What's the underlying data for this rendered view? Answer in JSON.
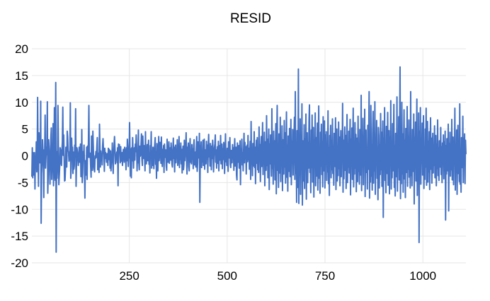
{
  "chart_data": {
    "type": "line",
    "title": "RESID",
    "xlabel": "",
    "ylabel": "",
    "xlim": [
      1,
      1110
    ],
    "ylim": [
      -20,
      20
    ],
    "x_ticks": [
      250,
      500,
      750,
      1000
    ],
    "y_ticks": [
      20,
      15,
      10,
      5,
      0,
      -5,
      -10,
      -15,
      -20
    ],
    "x_grid": true,
    "y_grid": true,
    "line_color": "#4472c4",
    "series": [
      {
        "values": [
          -3.9,
          1.5,
          -4.1,
          0.6,
          -2.5,
          -3.6,
          0.6,
          -6.2,
          -0.1,
          -1.7,
          2.6,
          -3.0,
          -1.6,
          10.9,
          -0.1,
          -5.7,
          4.3,
          0.8,
          -1.3,
          -1.0,
          10.2,
          -12.6,
          -3.3,
          -1.7,
          3.0,
          1.1,
          -0.3,
          -7.8,
          1.1,
          0.5,
          7.6,
          -2.3,
          -0.1,
          0.9,
          1.8,
          10.1,
          -7.0,
          -3.5,
          3.0,
          1.4,
          -1.3,
          -5.3,
          -0.7,
          3.5,
          5.2,
          -4.4,
          -1.7,
          -2.3,
          6.0,
          -5.6,
          -0.2,
          9.0,
          -3.8,
          -4.6,
          13.7,
          -18.0,
          0.8,
          -4.2,
          -1.5,
          9.4,
          2.0,
          -5.4,
          -3.7,
          -2.0,
          1.5,
          1.0,
          -1.3,
          -1.8,
          1.0,
          2.6,
          9.1,
          0.1,
          3.9,
          -0.3,
          -4.7,
          -4.6,
          -2.6,
          1.6,
          -0.5,
          -2.1,
          4.6,
          3.6,
          1.0,
          0.7,
          -1.0,
          -0.6,
          -0.7,
          9.9,
          -4.2,
          -2.3,
          3.3,
          0.6,
          1.6,
          -3.3,
          0.7,
          -2.5,
          -1.9,
          2.0,
          0.1,
          8.8,
          -5.7,
          -1.4,
          1.5,
          0.8,
          -0.3,
          -1.8,
          -0.4,
          1.6,
          -1.2,
          0.6,
          2.2,
          -3.9,
          -3.2,
          4.9,
          -5.0,
          -3.2,
          0.8,
          -0.3,
          2.0,
          -1.5,
          -7.9,
          -0.9,
          -2.1,
          -3.6,
          1.6,
          -4.4,
          1.8,
          -0.3,
          2.6,
          9.4,
          -0.3,
          -0.3,
          0.5,
          -2.0,
          -4.0,
          3.7,
          0.7,
          -2.7,
          4.6,
          1.7,
          -1.9,
          -2.6,
          -3.0,
          0.0,
          -0.5,
          0.8,
          -0.3,
          1.6,
          3.4,
          -2.6,
          -0.4,
          0.5,
          -3.1,
          5.9,
          1.8,
          -2.1,
          0.9,
          -0.2,
          0.3,
          -1.7,
          1.8,
          3.2,
          1.2,
          0.3,
          -2.9,
          1.4,
          -0.5,
          0.6,
          0.2,
          -1.2,
          0.3,
          0.4,
          -1.8,
          1.4,
          -0.7,
          1.2,
          0.8,
          -2.3,
          0.9,
          -2.8,
          -0.8,
          -1.0,
          2.4,
          -1.3,
          -3.3,
          0.3,
          2.0,
          3.6,
          1.4,
          -1.5,
          -0.1,
          -0.3,
          0.7,
          -1.3,
          1.5,
          -5.6,
          2.2,
          0.6,
          2.1,
          0.4,
          -1.3,
          1.7,
          -1.0,
          -0.2,
          0.6,
          -1.8,
          0.2,
          1.2,
          0.4,
          -1.2,
          1.6,
          1.0,
          0.2,
          -2.6,
          1.5,
          -0.9,
          3.1,
          1.7,
          -2.0,
          0.3,
          -0.4,
          6.2,
          0.8,
          -3.8,
          1.3,
          -4.1,
          1.5,
          -0.9,
          3.4,
          0.3,
          -2.3,
          0.5,
          1.5,
          -0.8,
          2.2,
          0.8,
          3.9,
          1.9,
          -2.8,
          0.8,
          -1.3,
          4.8,
          -1.1,
          -2.6,
          1.8,
          -0.1,
          0.2,
          2.2,
          4.1,
          -0.6,
          -1.8,
          3.7,
          1.2,
          -0.5,
          1.9,
          0.2,
          -2.8,
          4.5,
          -1.2,
          -1.5,
          0.6,
          2.1,
          -0.9,
          1.0,
          2.9,
          -1.6,
          0.3,
          -3.2,
          1.9,
          0.4,
          4.5,
          -2.3,
          0.9,
          -1.8,
          1.6,
          0.6,
          -2.4,
          1.1,
          2.1,
          3.4,
          -1.6,
          0.2,
          -4.2,
          2.3,
          1.1,
          -2.8,
          0.2,
          3.6,
          -0.9,
          0.5,
          2.5,
          1.3,
          -1.4,
          3.5,
          0.3,
          -2.0,
          1.2,
          -0.8,
          1.9,
          -3.1,
          2.2,
          0.6,
          -0.3,
          1.1,
          -1.9,
          -2.7,
          3.1,
          0.5,
          -1.2,
          -0.1,
          2.6,
          -1.4,
          0.7,
          1.5,
          -0.8,
          2.4,
          1.0,
          -1.6,
          -2.1,
          0.8,
          3.3,
          -0.5,
          1.6,
          -3.0,
          0.9,
          2.0,
          -1.3,
          0.4,
          -0.2,
          3.0,
          -1.8,
          -1.1,
          0.6,
          3.6,
          -2.2,
          1.7,
          -0.7,
          2.4,
          -1.5,
          1.2,
          -3.2,
          0.3,
          1.8,
          -2.6,
          -1.6,
          2.9,
          -0.9,
          0.5,
          1.4,
          4.3,
          -1.0,
          -3.4,
          1.6,
          0.4,
          2.4,
          -2.0,
          -2.8,
          1.1,
          3.2,
          -1.2,
          0.8,
          -1.5,
          2.1,
          -0.6,
          1.3,
          -2.4,
          1.9,
          3.0,
          -1.7,
          -0.3,
          0.7,
          -2.1,
          1.5,
          3.6,
          -2.9,
          -1.4,
          2.6,
          1.2,
          -0.4,
          4.2,
          -8.7,
          -0.3,
          1.4,
          2.6,
          -2.2,
          0.6,
          -1.1,
          2.9,
          -1.8,
          0.2,
          3.1,
          -2.5,
          1.1,
          0.4,
          -1.5,
          2.7,
          -0.6,
          2.0,
          -3.1,
          1.6,
          4.0,
          -0.2,
          0.9,
          -1.9,
          2.3,
          0.3,
          -2.6,
          1.8,
          -0.5,
          2.9,
          1.0,
          -3.0,
          -0.8,
          1.5,
          2.2,
          3.9,
          -1.2,
          1.1,
          -2.3,
          0.3,
          1.7,
          -1.4,
          2.7,
          -2.8,
          0.6,
          1.9,
          -0.8,
          3.8,
          -1.5,
          0.4,
          2.2,
          -2.4,
          1.3,
          -0.7,
          2.5,
          1.8,
          -3.3,
          0.2,
          4.1,
          -1.1,
          0.9,
          -1.8,
          1.4,
          -0.3,
          -2.9,
          2.6,
          1.2,
          -0.4,
          3.4,
          -1.6,
          -2.2,
          1.0,
          0.5,
          -1.3,
          2.1,
          -0.6,
          1.5,
          -2.7,
          0.8,
          3.2,
          -1.9,
          0.1,
          1.6,
          -3.6,
          -4.5,
          2.4,
          0.7,
          -1.2,
          1.9,
          -2.3,
          0.4,
          2.8,
          -5.4,
          1.3,
          -0.8,
          3.1,
          -1.7,
          0.6,
          -2.8,
          1.1,
          4.2,
          -1.3,
          2.5,
          -0.5,
          1.7,
          -3.4,
          0.9,
          2.0,
          -1.1,
          3.8,
          -0.7,
          1.4,
          -2.5,
          0.3,
          2.7,
          -4.4,
          6.4,
          -1.6,
          1.2,
          -3.7,
          2.3,
          0.8,
          -1.9,
          4.5,
          -2.2,
          1.6,
          -5.2,
          0.5,
          2.9,
          -1.4,
          3.4,
          -2.6,
          1.0,
          -3.1,
          5.4,
          -0.6,
          2.1,
          -4.8,
          1.5,
          3.6,
          -2.0,
          0.7,
          6.2,
          -3.5,
          1.9,
          -1.2,
          4.4,
          -5.6,
          2.6,
          0.4,
          -2.7,
          7.5,
          -1.8,
          3.1,
          -4.1,
          1.3,
          5.0,
          -6.3,
          2.2,
          -1.5,
          3.9,
          0.6,
          -3.8,
          8.8,
          -2.4,
          1.7,
          -5.3,
          4.6,
          -0.9,
          2.8,
          -4.5,
          1.1,
          6.0,
          -7.1,
          3.3,
          9.4,
          -2.7,
          0.5,
          -5.9,
          4.1,
          1.6,
          -3.2,
          7.2,
          -4.8,
          2.4,
          -1.7,
          5.6,
          -6.5,
          3.0,
          0.9,
          -3.4,
          6.6,
          -2.1,
          4.3,
          -5.1,
          1.2,
          8.2,
          -4.0,
          2.0,
          -6.6,
          3.7,
          0.4,
          -2.9,
          5.1,
          -3.9,
          1.5,
          6.8,
          -5.4,
          2.7,
          -1.4,
          4.9,
          -3.6,
          0.8,
          3.5,
          7.2,
          -4.4,
          12.0,
          -3.3,
          2.2,
          -8.7,
          4.7,
          0.3,
          -5.9,
          16.2,
          -8.9,
          1.9,
          -3.6,
          6.9,
          -7.2,
          3.6,
          -1.2,
          9.7,
          -9.2,
          2.8,
          0.6,
          -4.7,
          5.8,
          -6.1,
          3.2,
          -2.5,
          7.8,
          -8.1,
          1.4,
          4.3,
          -5.0,
          2.5,
          -2.3,
          6.4,
          9.5,
          -3.1,
          1.1,
          -6.9,
          4.8,
          -2.2,
          7.6,
          -4.9,
          0.9,
          5.3,
          -7.7,
          2.9,
          -1.6,
          8.0,
          -5.6,
          3.4,
          -3.8,
          1.7,
          6.1,
          -6.4,
          2.0,
          9.3,
          -4.2,
          1.3,
          -7.0,
          4.4,
          -1.9,
          5.9,
          -3.5,
          2.6,
          -5.8,
          7.3,
          -2.8,
          0.7,
          6.5,
          -6.0,
          3.9,
          -1.3,
          4.5,
          -4.6,
          2.3,
          -3.0,
          8.4,
          -5.2,
          1.5,
          -7.4,
          3.8,
          0.2,
          5.7,
          -4.1,
          2.8,
          -2.6,
          6.9,
          -3.3,
          1.8,
          -5.5,
          4.2,
          0.6,
          -2.0,
          7.1,
          -6.3,
          2.5,
          5.0,
          -4.7,
          1.2,
          -3.7,
          6.3,
          -2.4,
          3.5,
          -5.6,
          1.0,
          4.7,
          -3.9,
          2.1,
          -1.1,
          9.8,
          -6.8,
          2.9,
          -4.3,
          1.6,
          5.4,
          -2.7,
          3.8,
          -6.1,
          0.8,
          7.7,
          -5.0,
          2.2,
          -2.1,
          4.6,
          -3.2,
          1.4,
          6.8,
          -7.3,
          3.1,
          -1.8,
          5.2,
          -4.4,
          2.4,
          8.9,
          -5.8,
          1.7,
          -3.4,
          6.2,
          -2.3,
          4.0,
          -6.7,
          1.9,
          3.3,
          -4.8,
          7.4,
          -2.9,
          1.3,
          -5.3,
          4.9,
          0.5,
          -3.6,
          11.3,
          -6.5,
          2.7,
          -2.0,
          7.0,
          -5.4,
          3.6,
          -1.5,
          8.7,
          -7.6,
          2.0,
          4.8,
          -3.1,
          1.1,
          -6.2,
          5.7,
          -2.5,
          3.4,
          12.0,
          -7.9,
          2.6,
          -4.9,
          9.4,
          -3.8,
          1.9,
          -6.4,
          4.3,
          8.3,
          -5.1,
          2.3,
          -2.8,
          10.1,
          -7.2,
          3.0,
          -1.7,
          6.6,
          -4.2,
          1.6,
          -8.2,
          5.3,
          3.7,
          -6.0,
          2.1,
          -3.5,
          7.9,
          -2.6,
          4.4,
          -5.7,
          1.4,
          6.5,
          -11.5,
          3.3,
          -2.4,
          9.0,
          -4.6,
          1.8,
          -6.9,
          5.5,
          2.7,
          -3.3,
          8.1,
          -5.5,
          1.2,
          4.7,
          -7.1,
          3.5,
          -1.9,
          10.3,
          -6.2,
          2.4,
          -4.1,
          6.0,
          -2.8,
          3.2,
          9.6,
          -5.9,
          2.0,
          -7.5,
          4.2,
          1.0,
          -3.9,
          11.0,
          -6.6,
          2.8,
          -2.2,
          7.3,
          -4.5,
          3.9,
          16.6,
          -8.0,
          2.1,
          -5.2,
          10.0,
          -3.4,
          4.1,
          -6.8,
          1.5,
          8.6,
          -4.3,
          2.9,
          -7.8,
          5.1,
          0.6,
          -3.1,
          9.2,
          -5.7,
          3.6,
          -2.5,
          6.7,
          -4.0,
          1.7,
          -6.0,
          12.0,
          -3.7,
          2.2,
          -5.6,
          4.9,
          1.3,
          -2.9,
          7.8,
          -9.0,
          3.4,
          -1.6,
          6.3,
          -4.7,
          2.5,
          10.6,
          -7.4,
          1.9,
          -3.8,
          8.0,
          -16.2,
          4.6,
          -2.7,
          9.0,
          -5.3,
          2.8,
          -1.4,
          6.1,
          -3.6,
          3.0,
          7.5,
          -6.1,
          1.6,
          -4.4,
          5.0,
          -2.1,
          8.9,
          -5.5,
          1.1,
          6.4,
          -4.9,
          2.7,
          -3.0,
          4.5,
          -6.3,
          1.4,
          7.1,
          -2.5,
          3.3,
          -5.1,
          1.2,
          4.2,
          -3.2,
          2.0,
          -1.8,
          5.6,
          -4.1,
          0.9,
          3.8,
          -5.6,
          2.2,
          -2.4,
          6.7,
          -3.7,
          1.5,
          -4.6,
          2.8,
          0.4,
          -2.1,
          5.3,
          -3.5,
          1.7,
          -5.0,
          2.4,
          -1.2,
          3.9,
          -4.3,
          2.6,
          -2.3,
          4.6,
          -12.0,
          1.9,
          -3.4,
          3.2,
          1.0,
          -2.8,
          5.9,
          -10.3,
          2.3,
          -1.5,
          4.4,
          -3.8,
          1.6,
          -2.6,
          6.8,
          -4.5,
          1.1,
          3.5,
          -5.4,
          2.7,
          -1.3,
          8.9,
          -6.4,
          2.0,
          -3.1,
          4.8,
          -7.2,
          1.4,
          5.7,
          -3.3,
          2.5,
          -4.8,
          9.7,
          -5.3,
          1.2,
          -6.8,
          3.4,
          0.8,
          -2.2,
          7.4,
          -5.0,
          3.3,
          -1.5,
          4.1,
          -5.2,
          2.9,
          0.3
        ]
      }
    ]
  }
}
